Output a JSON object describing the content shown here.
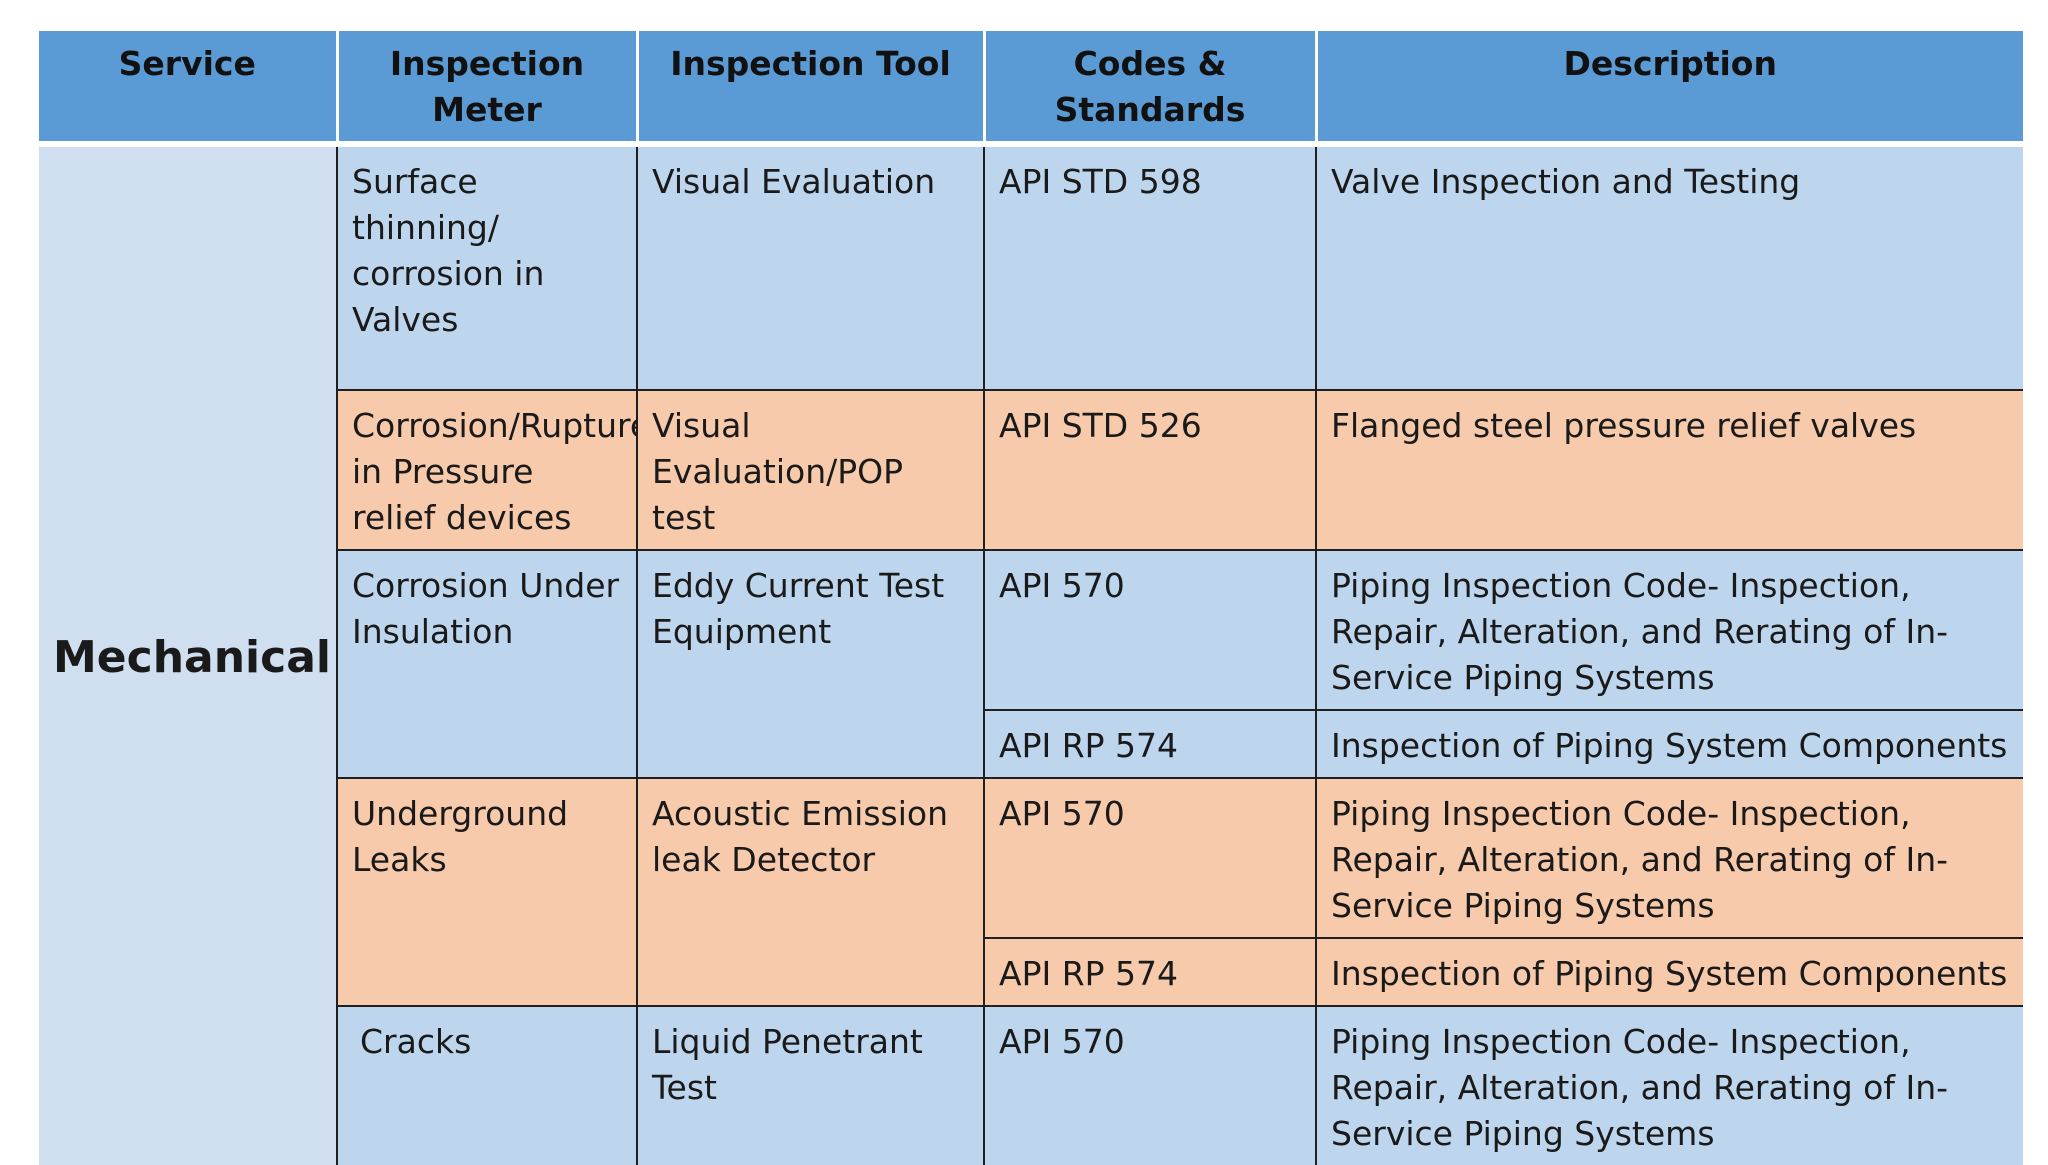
{
  "headers": [
    "Service",
    "Inspection Meter",
    "Inspection Tool",
    "Codes & Standards",
    "Description"
  ],
  "service": "Mechanical",
  "rows": [
    {
      "meter": "Surface thinning/ corrosion in Valves",
      "tool": "Visual Evaluation",
      "code": "API STD 598",
      "description": "Valve Inspection and Testing"
    },
    {
      "meter": "Corrosion/Rupture in Pressure relief devices",
      "tool": "Visual Evaluation/POP test",
      "code": "API STD 526",
      "description": "Flanged steel pressure relief valves"
    },
    {
      "meter": "Corrosion Under Insulation",
      "tool": "Eddy Current Test Equipment",
      "code": "API 570",
      "description": "Piping Inspection Code- Inspection, Repair, Alteration, and Rerating of In-Service Piping Systems"
    },
    {
      "code": "API RP 574",
      "description": "Inspection of Piping System Components"
    },
    {
      "meter": "Underground Leaks",
      "tool": "Acoustic Emission leak Detector",
      "code": "API 570",
      "description": "Piping Inspection Code- Inspection, Repair, Alteration, and Rerating of In-Service Piping Systems"
    },
    {
      "code": "API RP 574",
      "description": "Inspection of Piping System Components"
    },
    {
      "meter": "Cracks",
      "tool": "Liquid Penetrant Test",
      "code": "API 570",
      "description": "Piping Inspection Code- Inspection, Repair, Alteration, and Rerating of In-Service Piping Systems"
    }
  ],
  "colors": {
    "header": "#5b9bd5",
    "row_blue": "#bdd6ee",
    "row_peach": "#f7caac",
    "service_cell": "#d0dff0"
  }
}
